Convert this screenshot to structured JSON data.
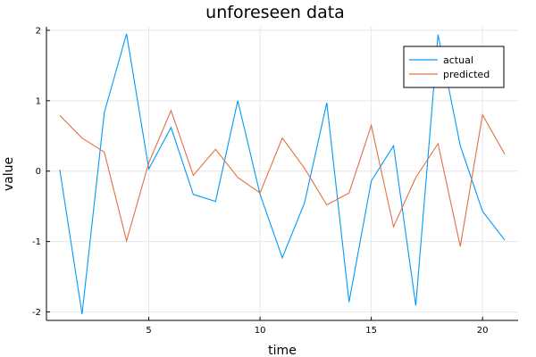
{
  "chart_data": {
    "type": "line",
    "title": "unforeseen data",
    "xlabel": "time",
    "ylabel": "value",
    "x": [
      1,
      2,
      3,
      4,
      5,
      6,
      7,
      8,
      9,
      10,
      11,
      12,
      13,
      14,
      15,
      16,
      17,
      18,
      19,
      20,
      21
    ],
    "xlim": [
      0.4,
      21.6
    ],
    "ylim": [
      -2.12,
      2.05
    ],
    "xticks": [
      5,
      10,
      15,
      20
    ],
    "yticks": [
      -2,
      -1,
      0,
      1,
      2
    ],
    "grid": true,
    "legend_position": "top-right",
    "series": [
      {
        "name": "actual",
        "color": "#009af9",
        "values": [
          0.02,
          -2.03,
          0.83,
          1.95,
          0.03,
          0.62,
          -0.33,
          -0.43,
          1.0,
          -0.33,
          -1.23,
          -0.45,
          0.97,
          -1.86,
          -0.14,
          0.36,
          -1.91,
          1.94,
          0.36,
          -0.57,
          -0.98
        ]
      },
      {
        "name": "predicted",
        "color": "#e26f46",
        "values": [
          0.79,
          0.47,
          0.27,
          -0.99,
          0.12,
          0.86,
          -0.06,
          0.31,
          -0.09,
          -0.31,
          0.47,
          0.04,
          -0.48,
          -0.31,
          0.65,
          -0.79,
          -0.09,
          0.39,
          -1.07,
          0.8,
          0.24
        ]
      }
    ]
  }
}
